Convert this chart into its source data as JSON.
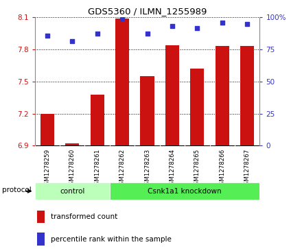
{
  "title": "GDS5360 / ILMN_1255989",
  "samples": [
    "GSM1278259",
    "GSM1278260",
    "GSM1278261",
    "GSM1278262",
    "GSM1278263",
    "GSM1278264",
    "GSM1278265",
    "GSM1278266",
    "GSM1278267"
  ],
  "bar_values": [
    7.2,
    6.92,
    7.38,
    8.09,
    7.55,
    7.84,
    7.62,
    7.83,
    7.83
  ],
  "dot_values_left": [
    7.93,
    7.88,
    7.95,
    8.09,
    7.95,
    8.02,
    8.0,
    8.05,
    8.04
  ],
  "ylim_left": [
    6.9,
    8.1
  ],
  "ylim_right": [
    0,
    100
  ],
  "yticks_left": [
    6.9,
    7.2,
    7.5,
    7.8,
    8.1
  ],
  "yticks_right": [
    0,
    25,
    50,
    75,
    100
  ],
  "bar_color": "#cc1111",
  "dot_color": "#3333cc",
  "control_samples": 3,
  "control_label": "control",
  "knockdown_label": "Csnk1a1 knockdown",
  "legend_bar_label": "transformed count",
  "legend_dot_label": "percentile rank within the sample",
  "protocol_label": "protocol",
  "control_color": "#bbffbb",
  "knockdown_color": "#55ee55",
  "tick_color_left": "#cc1111",
  "tick_color_right": "#3333cc",
  "tick_area_color": "#dddddd"
}
